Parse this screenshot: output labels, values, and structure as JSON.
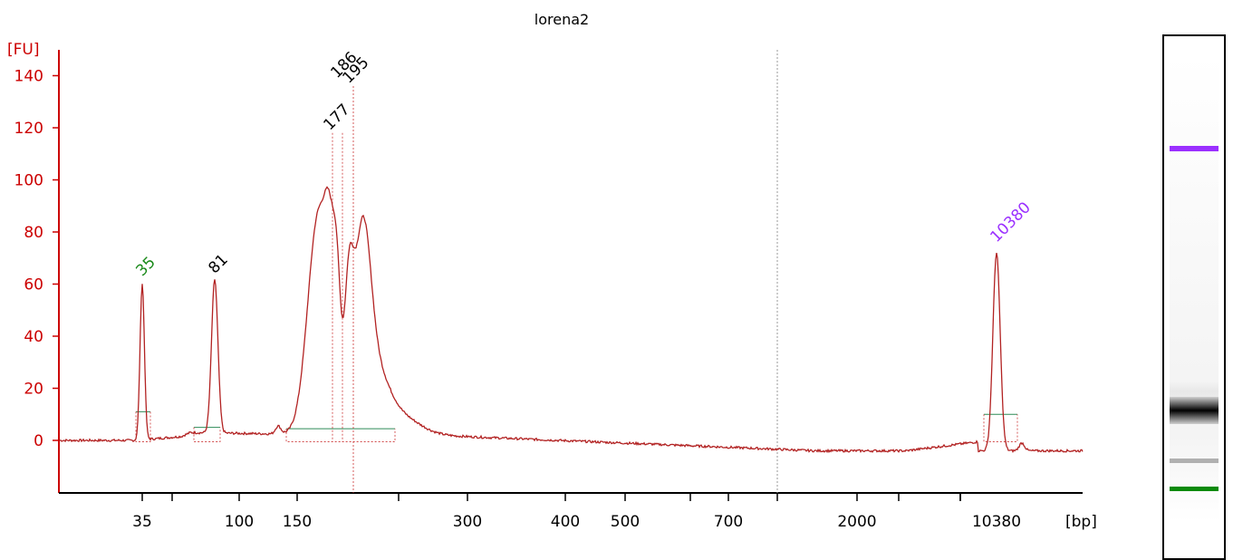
{
  "chart_data": {
    "type": "line",
    "title": "lorena2",
    "y_unit_label": "[FU]",
    "x_unit_label": "[bp]",
    "y_ticks": [
      0,
      20,
      40,
      60,
      80,
      100,
      120,
      140
    ],
    "x_tick_labels": [
      "35",
      "",
      "100",
      "150",
      "",
      "300",
      "400",
      "500",
      "",
      "700",
      "",
      "2000",
      "",
      "10380"
    ],
    "x_tick_labeled": [
      "35",
      "100",
      "150",
      "300",
      "400",
      "500",
      "700",
      "2000",
      "10380"
    ],
    "ylim": [
      -20,
      148
    ],
    "peaks": [
      {
        "label": "35",
        "size_bp": 35,
        "fu": 60,
        "color": "#1a8a1a",
        "kind": "lower marker"
      },
      {
        "label": "81",
        "size_bp": 81,
        "fu": 61,
        "color": "#000000"
      },
      {
        "label": "177",
        "size_bp": 177,
        "fu": 116,
        "color": "#000000"
      },
      {
        "label": "186",
        "size_bp": 186,
        "fu": 136,
        "color": "#000000"
      },
      {
        "label": "195",
        "size_bp": 195,
        "fu": 134,
        "color": "#000000"
      },
      {
        "label": "10380",
        "size_bp": 10380,
        "fu": 73,
        "color": "#9b30ff",
        "kind": "upper marker"
      }
    ],
    "trace_color": "#b22222",
    "axis_color": "#cc0000",
    "grid": false
  },
  "gel_lane": {
    "bands": [
      {
        "label": "upper marker",
        "color": "#9b30ff"
      },
      {
        "label": "main band",
        "color": "#000000"
      },
      {
        "label": "faint band",
        "color": "#808080"
      },
      {
        "label": "lower marker",
        "color": "#0a8a0a"
      }
    ]
  }
}
